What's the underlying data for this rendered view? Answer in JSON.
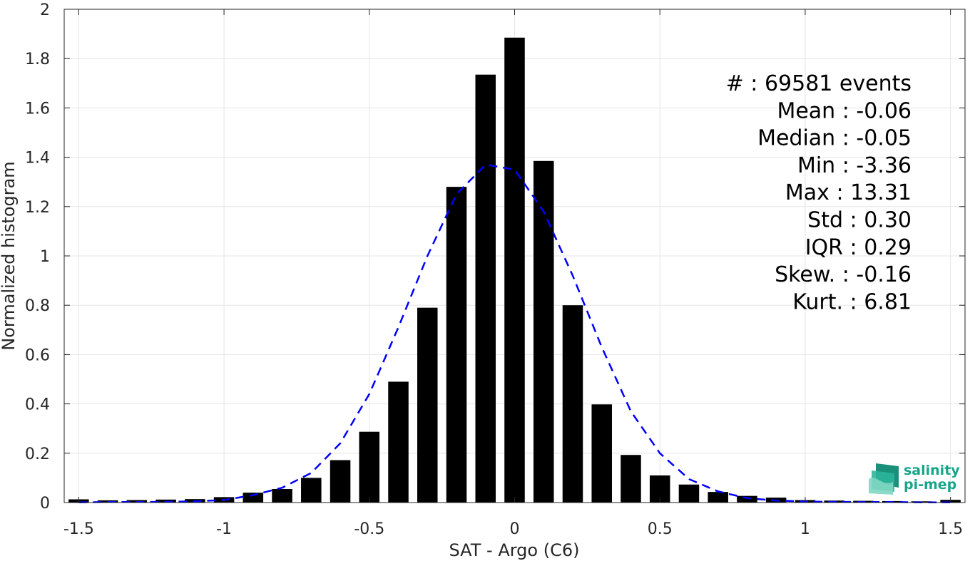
{
  "chart_data": {
    "type": "bar",
    "xlabel": "SAT - Argo (C6)",
    "ylabel": "Normalized histogram",
    "xlim": [
      -1.55,
      1.55
    ],
    "ylim": [
      0,
      2
    ],
    "grid": true,
    "bar_color": "#000000",
    "fit_color": "#0000ff",
    "x_ticks": [
      "-1.5",
      "-1",
      "-0.5",
      "0",
      "0.5",
      "1",
      "1.5"
    ],
    "x_tick_values": [
      -1.5,
      -1,
      -0.5,
      0,
      0.5,
      1,
      1.5
    ],
    "y_ticks": [
      "0",
      "0.2",
      "0.4",
      "0.6",
      "0.8",
      "1",
      "1.2",
      "1.4",
      "1.6",
      "1.8",
      "2"
    ],
    "y_tick_values": [
      0,
      0.2,
      0.4,
      0.6,
      0.8,
      1,
      1.2,
      1.4,
      1.6,
      1.8,
      2
    ],
    "bin_centers": [
      -1.5,
      -1.4,
      -1.3,
      -1.2,
      -1.1,
      -1.0,
      -0.9,
      -0.8,
      -0.7,
      -0.6,
      -0.5,
      -0.4,
      -0.3,
      -0.2,
      -0.1,
      0.0,
      0.1,
      0.2,
      0.3,
      0.4,
      0.5,
      0.6,
      0.7,
      0.8,
      0.9,
      1.0,
      1.1,
      1.2,
      1.3,
      1.4,
      1.5
    ],
    "values": [
      0.013,
      0.009,
      0.01,
      0.012,
      0.014,
      0.022,
      0.04,
      0.055,
      0.1,
      0.172,
      0.287,
      0.49,
      0.79,
      1.28,
      1.735,
      1.885,
      1.385,
      0.8,
      0.398,
      0.193,
      0.11,
      0.073,
      0.043,
      0.027,
      0.02,
      0.01,
      0.008,
      0.007,
      0.006,
      0.005,
      0.011
    ],
    "fit_series": {
      "style": "dashed",
      "x": [
        -1.5,
        -1.4,
        -1.3,
        -1.2,
        -1.1,
        -1.0,
        -0.9,
        -0.8,
        -0.7,
        -0.6,
        -0.5,
        -0.4,
        -0.3,
        -0.2,
        -0.1,
        0.0,
        0.1,
        0.2,
        0.3,
        0.4,
        0.5,
        0.6,
        0.7,
        0.8,
        0.9,
        1.0,
        1.1,
        1.2,
        1.3,
        1.4,
        1.5
      ],
      "y": [
        0.001,
        0.002,
        0.002,
        0.003,
        0.005,
        0.01,
        0.03,
        0.06,
        0.12,
        0.24,
        0.44,
        0.71,
        1.0,
        1.25,
        1.37,
        1.35,
        1.18,
        0.92,
        0.63,
        0.37,
        0.2,
        0.095,
        0.045,
        0.018,
        0.008,
        0.004,
        0.003,
        0.002,
        0.002,
        0.001,
        0.001
      ]
    },
    "annotations": [
      "#  : 69581 events",
      "Mean : -0.06",
      "Median : -0.05",
      "Min : -3.36",
      "Max : 13.31",
      "Std : 0.30",
      "IQR : 0.29",
      "Skew. : -0.16",
      "Kurt. : 6.81"
    ]
  },
  "logo": {
    "line1": "salinity",
    "line2": "pi-mep",
    "color": "#17a58a"
  }
}
